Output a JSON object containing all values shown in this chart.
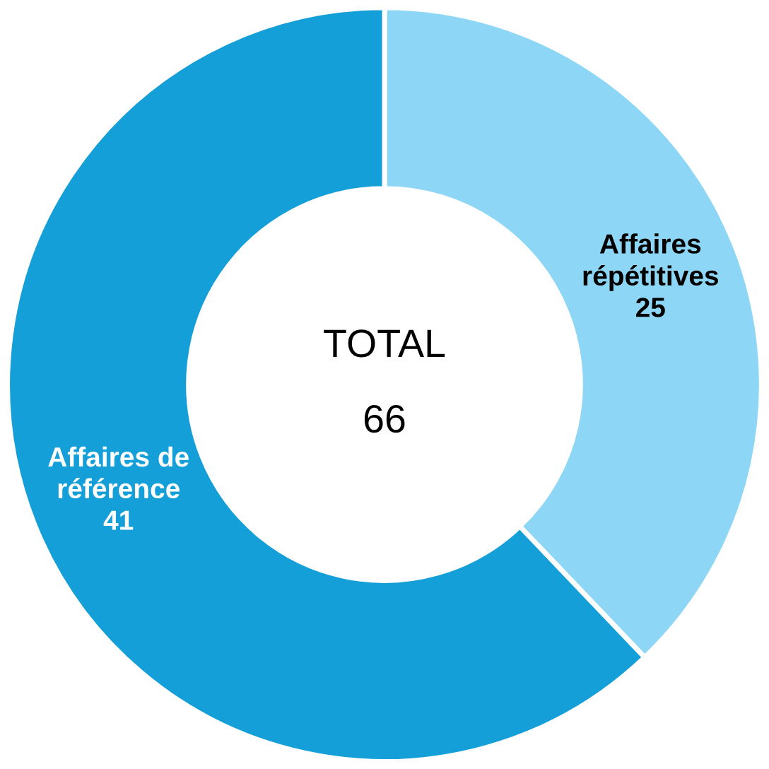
{
  "chart_data": {
    "type": "donut",
    "categories": [
      "Affaires répétitives",
      "Affaires de référence"
    ],
    "values": [
      25,
      41
    ],
    "colors": [
      "#8dd6f6",
      "#159fd9"
    ],
    "data_labels": true,
    "annotations": [
      "TOTAL",
      "66"
    ]
  }
}
